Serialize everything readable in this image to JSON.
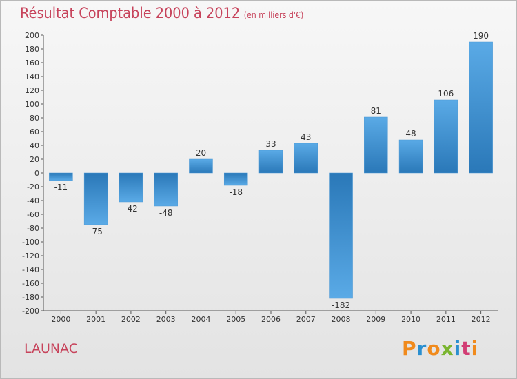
{
  "title": "Résultat Comptable 2000 à 2012",
  "subtitle": "(en milliers d'€)",
  "commune": "LAUNAC",
  "logo": {
    "letters": [
      "P",
      "r",
      "o",
      "x",
      "i",
      "t",
      "i"
    ],
    "colors": [
      "#f08a1c",
      "#2a8fd0",
      "#f08a1c",
      "#7ab530",
      "#2a8fd0",
      "#d23d74",
      "#f08a1c"
    ]
  },
  "colors": {
    "bar_top": "#5aaae6",
    "bar_bottom": "#2a78b8",
    "title": "#c7435b"
  },
  "chart_data": {
    "type": "bar",
    "categories": [
      "2000",
      "2001",
      "2002",
      "2003",
      "2004",
      "2005",
      "2006",
      "2007",
      "2008",
      "2009",
      "2010",
      "2011",
      "2012"
    ],
    "values": [
      -11,
      -75,
      -42,
      -48,
      20,
      -18,
      33,
      43,
      -182,
      81,
      48,
      106,
      190
    ],
    "ylim": [
      -200,
      200
    ],
    "yticks": [
      200,
      180,
      160,
      140,
      120,
      100,
      80,
      60,
      40,
      20,
      0,
      -20,
      -40,
      -60,
      -80,
      -100,
      -120,
      -140,
      -160,
      -180,
      -200
    ],
    "grid": false
  }
}
